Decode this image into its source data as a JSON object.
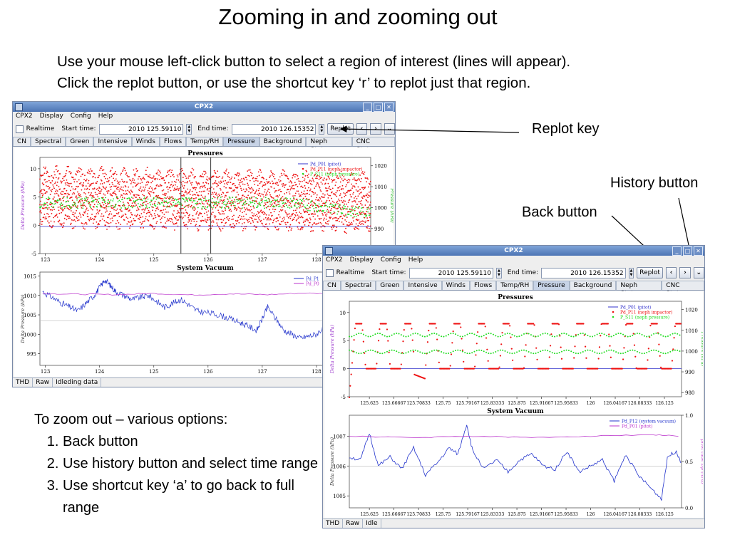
{
  "slide": {
    "title": "Zooming in and zooming out",
    "intro_line1": "Use your mouse left-click button to select a region of interest (lines will appear).",
    "intro_line2": "Click the replot button, or use the shortcut key ‘r’ to replot just that region.",
    "callout_replot": "Replot key",
    "callout_history": "History button",
    "callout_back": "Back button",
    "zoom_out_heading": "To zoom out – various options:",
    "zoom_out_options": [
      "Back button",
      "Use history button and select time range",
      "Use shortcut key ‘a’ to go back to full range"
    ]
  },
  "windows": {
    "left": {
      "title": "CPX2",
      "menu": [
        "CPX2",
        "Display",
        "Config",
        "Help"
      ],
      "realtime_label": "Realtime",
      "start_label": "Start time:",
      "start_value": "2010 125.59110",
      "end_label": "End time:",
      "end_value": "2010 126.15352",
      "replot_label": "Replot",
      "tabs": [
        "CN",
        "Spectral",
        "Green",
        "Intensive",
        "Winds",
        "Flows",
        "Temp/RH",
        "Pressure",
        "Background",
        "Neph Status",
        "CNC Status"
      ],
      "selected_tab": "Pressure",
      "status": [
        "THD",
        "Raw",
        "Idleding data"
      ]
    },
    "right": {
      "title": "CPX2",
      "menu": [
        "CPX2",
        "Display",
        "Config",
        "Help"
      ],
      "realtime_label": "Realtime",
      "start_label": "Start time:",
      "start_value": "2010 125.59110",
      "end_label": "End time:",
      "end_value": "2010 126.15352",
      "replot_label": "Replot",
      "tabs": [
        "CN",
        "Spectral",
        "Green",
        "Intensive",
        "Winds",
        "Flows",
        "Temp/RH",
        "Pressure",
        "Background",
        "Neph Status",
        "CNC Status"
      ],
      "selected_tab": "Pressure",
      "status": [
        "THD",
        "Raw",
        "Idle"
      ]
    }
  },
  "colors": {
    "pitot": "#3333cc",
    "impactor": "#ee1111",
    "neph_pressure": "#22dd22",
    "vacuum": "#2233cc",
    "pitot_purple": "#bb33cc",
    "axis_label_left": "#9933cc",
    "axis_label_right": "#22bb22"
  },
  "chart_data": [
    {
      "id": "left_pressures",
      "type": "scatter",
      "title": "Pressures",
      "ylabel": "Delta Pressure (hPa)",
      "y2label": "Pressure (hPa)",
      "x_ticks": [
        "123",
        "124",
        "125",
        "126",
        "127",
        "128"
      ],
      "xlim": [
        122.9,
        129.0
      ],
      "y_ticks": [
        "-5",
        "0",
        "5",
        "10"
      ],
      "ylim": [
        -5,
        12
      ],
      "y2_ticks": [
        "980",
        "990",
        "1000",
        "1010",
        "1020"
      ],
      "selection_lines_x": [
        125.5,
        126.05
      ],
      "legend": [
        "Pd_P01 (pitot)",
        "Pd_P11 (neph impactor)",
        "P_S11 (neph pressure)"
      ],
      "legend_position": "top-right"
    },
    {
      "id": "left_vacuum",
      "type": "line",
      "title": "System Vacuum",
      "ylabel": "Delta Pressure (hPa)",
      "x_ticks": [
        "123",
        "124",
        "125",
        "126",
        "127",
        "128"
      ],
      "xlim": [
        122.9,
        129.0
      ],
      "y_ticks": [
        "995",
        "1000",
        "1005",
        "1010",
        "1015"
      ],
      "ylim": [
        992,
        1016
      ],
      "legend": [
        "Pd_P1",
        "Pd_P0"
      ],
      "series": [
        {
          "name": "Pd_P1",
          "x": [
            122.95,
            123.3,
            123.6,
            123.9,
            124.1,
            124.3,
            124.6,
            124.9,
            125.2,
            125.5,
            125.8,
            126.2,
            126.6,
            126.9,
            127.1,
            127.4,
            127.7,
            128.0,
            128.3,
            128.6,
            128.9
          ],
          "y": [
            1011,
            1008,
            1006,
            1010,
            1014,
            1011,
            1009,
            1010,
            1007,
            1009,
            1006,
            1005,
            1003,
            1001,
            1007,
            1001,
            999,
            1000,
            1004,
            997,
            999
          ]
        },
        {
          "name": "Pd_P0",
          "x": [
            122.95,
            123.6,
            124.3,
            125.0,
            125.7,
            126.4,
            127.1,
            127.8,
            128.5,
            128.9
          ],
          "y": [
            1010.5,
            1010.3,
            1010.2,
            1010.5,
            1010.1,
            1010.4,
            1010.2,
            1010.6,
            1010.3,
            1010.4
          ]
        }
      ]
    },
    {
      "id": "right_pressures",
      "type": "scatter",
      "title": "Pressures",
      "ylabel": "Delta Pressure (hPa)",
      "y2label": "Pressure (hPa)",
      "x_ticks": [
        "125.625",
        "125.66667",
        "125.70833",
        "125.75",
        "125.79167",
        "125.83333",
        "125.875",
        "125.91667",
        "125.95833",
        "126",
        "126.04167",
        "126.08333",
        "126.125"
      ],
      "xlim": [
        125.591,
        126.154
      ],
      "y_ticks": [
        "-5",
        "0",
        "5",
        "10"
      ],
      "ylim": [
        -5,
        12
      ],
      "y2_ticks": [
        "980",
        "990",
        "1000",
        "1010",
        "1020"
      ],
      "legend": [
        "Pd_P01 (pitot)",
        "Pd_P11 (neph impactor)",
        "P_S11 (neph pressure)"
      ],
      "legend_position": "top-right",
      "series": [
        {
          "name": "Pd_P01 (pitot)",
          "x": [
            125.591,
            126.154
          ],
          "y": [
            0,
            0
          ]
        },
        {
          "name": "Pd_P11 (neph impactor)",
          "period_days": 0.0417,
          "low": 0,
          "high": 8
        },
        {
          "name": "P_S11 (neph pressure)",
          "upper_y": 6,
          "lower_y": 3
        }
      ]
    },
    {
      "id": "right_vacuum",
      "type": "line",
      "title": "System Vacuum",
      "ylabel": "Delta Pressure (hPa)",
      "y2label": "pitot tube Dp (hPa)",
      "x_ticks": [
        "125.625",
        "125.66667",
        "125.70833",
        "125.75",
        "125.79167",
        "125.83333",
        "125.875",
        "125.91667",
        "125.95833",
        "126",
        "126.04167",
        "126.08333",
        "126.125"
      ],
      "xlim": [
        125.591,
        126.154
      ],
      "y_ticks": [
        "1005",
        "1006",
        "1007"
      ],
      "ylim": [
        1004.6,
        1007.7
      ],
      "y2_ticks": [
        "0.0",
        "0.5",
        "1.0"
      ],
      "legend": [
        "Pd_P12 (system vacuum)",
        "Pd_P01 (pitot)"
      ],
      "legend_position": "top-right",
      "series": [
        {
          "name": "Pd_P12 (system vacuum)",
          "x": [
            125.591,
            125.61,
            125.625,
            125.64,
            125.66,
            125.68,
            125.7,
            125.72,
            125.74,
            125.76,
            125.775,
            125.79,
            125.8,
            125.82,
            125.84,
            125.86,
            125.88,
            125.9,
            125.92,
            125.94,
            125.96,
            125.98,
            126.0,
            126.02,
            126.04,
            126.06,
            126.08,
            126.1,
            126.12,
            126.13,
            126.145,
            126.154
          ],
          "y": [
            1006.3,
            1006.2,
            1007.1,
            1006.0,
            1006.3,
            1005.9,
            1006.6,
            1005.7,
            1006.1,
            1006.6,
            1006.4,
            1007.4,
            1006.5,
            1005.9,
            1006.2,
            1005.8,
            1006.2,
            1006.4,
            1006.0,
            1005.9,
            1006.5,
            1005.8,
            1006.0,
            1006.2,
            1005.5,
            1006.4,
            1005.7,
            1005.3,
            1004.9,
            1006.3,
            1006.5,
            1006.1
          ]
        },
        {
          "name": "Pd_P01 (pitot)",
          "x": [
            125.591,
            125.7,
            125.8,
            125.9,
            126.0,
            126.1,
            126.154
          ],
          "y": [
            1007.0,
            1006.95,
            1007.0,
            1006.95,
            1007.0,
            1007.05,
            1007.0
          ]
        }
      ]
    }
  ]
}
